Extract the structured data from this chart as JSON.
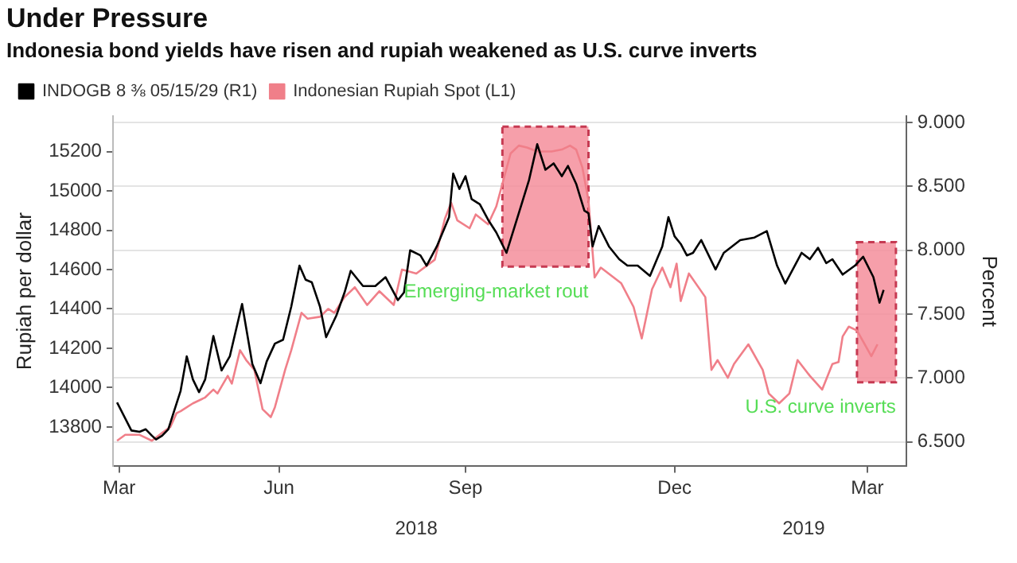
{
  "chart_data": {
    "type": "line",
    "title": "Under Pressure",
    "subtitle": "Indonesia bond yields have risen and rupiah weakened as U.S. curve inverts",
    "ylabel": "Rupiah per dollar",
    "y2label": "Percent",
    "xlim": [
      "2018-03-18",
      "2019-04-09"
    ],
    "xticks": [
      {
        "value": "2018-03-21",
        "label": "Mar"
      },
      {
        "value": "2018-06-07",
        "label": "Jun"
      },
      {
        "value": "2018-09-06",
        "label": "Sep"
      },
      {
        "value": "2018-12-17",
        "label": "Dec"
      },
      {
        "value": "2019-03-21",
        "label": "Mar"
      }
    ],
    "x2lim": [
      "2018-03-18",
      "2019-04-09"
    ],
    "x2ticks": [
      {
        "value": "2018-08-13",
        "label": "2018"
      },
      {
        "value": "2019-02-18",
        "label": "2019"
      }
    ],
    "ylim": [
      13600,
      15380
    ],
    "yticks": [
      13800,
      14000,
      14200,
      14400,
      14600,
      14800,
      15000,
      15200
    ],
    "y2lim": [
      6.31,
      9.05
    ],
    "y2ticks": [
      {
        "value": 6.5,
        "label": "6.500"
      },
      {
        "value": 7,
        "label": "7.000"
      },
      {
        "value": 7.5,
        "label": "7.500"
      },
      {
        "value": 8,
        "label": "8.000"
      },
      {
        "value": 8.5,
        "label": "8.500"
      },
      {
        "value": 9,
        "label": "9.000"
      }
    ],
    "grid": "y",
    "legend": "top left",
    "marker": "none",
    "line_style": "solid",
    "bands": [
      {
        "axis": "x",
        "from": "2018-09-24",
        "to": "2018-11-05",
        "label": "Emerging-market rout",
        "color": "#f58e9b"
      },
      {
        "axis": "x",
        "from": "2019-03-16",
        "to": "2019-04-04",
        "label": "U.S. curve inverts",
        "color": "#f58e9b"
      }
    ],
    "series": [
      {
        "name": "INDOGB 8 ⅜ 05/15/29 (R1)",
        "color": "#000000",
        "axis": "y2",
        "x": [
          "2018-03-20",
          "2018-03-27",
          "2018-03-31",
          "2018-04-03",
          "2018-04-06",
          "2018-04-08",
          "2018-04-11",
          "2018-04-14",
          "2018-04-17",
          "2018-04-20",
          "2018-04-23",
          "2018-04-26",
          "2018-04-29",
          "2018-05-02",
          "2018-05-06",
          "2018-05-10",
          "2018-05-14",
          "2018-05-20",
          "2018-05-25",
          "2018-05-29",
          "2018-06-01",
          "2018-06-05",
          "2018-06-09",
          "2018-06-13",
          "2018-06-17",
          "2018-06-20",
          "2018-06-23",
          "2018-06-27",
          "2018-06-30",
          "2018-07-05",
          "2018-07-09",
          "2018-07-12",
          "2018-07-18",
          "2018-07-24",
          "2018-07-29",
          "2018-08-04",
          "2018-08-07",
          "2018-08-10",
          "2018-08-15",
          "2018-08-18",
          "2018-08-23",
          "2018-08-29",
          "2018-08-31",
          "2018-09-03",
          "2018-09-06",
          "2018-09-09",
          "2018-09-13",
          "2018-09-17",
          "2018-09-21",
          "2018-09-26",
          "2018-10-02",
          "2018-10-07",
          "2018-10-11",
          "2018-10-15",
          "2018-10-19",
          "2018-10-23",
          "2018-10-26",
          "2018-10-30",
          "2018-11-03",
          "2018-11-05",
          "2018-11-07",
          "2018-11-10",
          "2018-11-15",
          "2018-11-20",
          "2018-11-24",
          "2018-11-29",
          "2018-12-05",
          "2018-12-11",
          "2018-12-14",
          "2018-12-17",
          "2018-12-20",
          "2018-12-23",
          "2018-12-26",
          "2018-12-30",
          "2019-01-06",
          "2019-01-10",
          "2019-01-18",
          "2019-01-25",
          "2019-01-31",
          "2019-02-05",
          "2019-02-09",
          "2019-02-17",
          "2019-02-21",
          "2019-02-25",
          "2019-03-01",
          "2019-03-04",
          "2019-03-09",
          "2019-03-15",
          "2019-03-19",
          "2019-03-24",
          "2019-03-27",
          "2019-03-29"
        ],
        "values": [
          6.81,
          6.59,
          6.58,
          6.6,
          6.55,
          6.52,
          6.55,
          6.6,
          6.75,
          6.9,
          7.17,
          6.99,
          6.89,
          6.99,
          7.33,
          7.06,
          7.17,
          7.58,
          7.11,
          6.96,
          7.13,
          7.27,
          7.3,
          7.56,
          7.88,
          7.77,
          7.75,
          7.56,
          7.32,
          7.49,
          7.67,
          7.84,
          7.72,
          7.72,
          7.79,
          7.61,
          7.67,
          8.0,
          7.96,
          7.88,
          8.03,
          8.26,
          8.6,
          8.48,
          8.58,
          8.4,
          8.36,
          8.24,
          8.14,
          7.98,
          8.29,
          8.55,
          8.83,
          8.63,
          8.68,
          8.58,
          8.66,
          8.52,
          8.31,
          8.29,
          8.03,
          8.19,
          8.03,
          7.93,
          7.88,
          7.88,
          7.8,
          8.03,
          8.26,
          8.11,
          8.05,
          7.96,
          7.98,
          8.08,
          7.85,
          7.98,
          8.08,
          8.1,
          8.15,
          7.88,
          7.74,
          7.98,
          7.93,
          8.02,
          7.9,
          7.93,
          7.81,
          7.88,
          7.95,
          7.79,
          7.59,
          7.69
        ]
      },
      {
        "name": "Indonesian Rupiah Spot (L1)",
        "color": "#f07f89",
        "x": [
          "2018-03-20",
          "2018-03-24",
          "2018-03-31",
          "2018-04-06",
          "2018-04-11",
          "2018-04-15",
          "2018-04-18",
          "2018-04-20",
          "2018-04-26",
          "2018-05-02",
          "2018-05-06",
          "2018-05-08",
          "2018-05-13",
          "2018-05-15",
          "2018-05-19",
          "2018-05-22",
          "2018-05-26",
          "2018-05-30",
          "2018-06-03",
          "2018-06-05",
          "2018-06-10",
          "2018-06-13",
          "2018-06-18",
          "2018-06-21",
          "2018-06-27",
          "2018-07-01",
          "2018-07-04",
          "2018-07-09",
          "2018-07-14",
          "2018-07-20",
          "2018-07-26",
          "2018-08-02",
          "2018-08-06",
          "2018-08-13",
          "2018-08-22",
          "2018-08-27",
          "2018-08-30",
          "2018-09-02",
          "2018-09-08",
          "2018-09-11",
          "2018-09-17",
          "2018-09-21",
          "2018-09-28",
          "2018-10-02",
          "2018-10-06",
          "2018-10-11",
          "2018-10-18",
          "2018-10-23",
          "2018-10-27",
          "2018-10-30",
          "2018-11-02",
          "2018-11-05",
          "2018-11-08",
          "2018-11-11",
          "2018-11-21",
          "2018-11-27",
          "2018-12-01",
          "2018-12-06",
          "2018-12-11",
          "2018-12-15",
          "2018-12-18",
          "2018-12-20",
          "2018-12-24",
          "2019-01-01",
          "2019-01-04",
          "2019-01-07",
          "2019-01-12",
          "2019-01-15",
          "2019-01-22",
          "2019-01-29",
          "2019-02-01",
          "2019-02-06",
          "2019-02-11",
          "2019-02-15",
          "2019-02-21",
          "2019-02-27",
          "2019-03-04",
          "2019-03-07",
          "2019-03-09",
          "2019-03-12",
          "2019-03-16",
          "2019-03-23",
          "2019-03-26"
        ],
        "values": [
          13730,
          13760,
          13760,
          13730,
          13770,
          13800,
          13870,
          13880,
          13920,
          13950,
          13990,
          13970,
          14060,
          14020,
          14190,
          14140,
          14090,
          13890,
          13850,
          13900,
          14090,
          14190,
          14380,
          14350,
          14360,
          14400,
          14380,
          14460,
          14510,
          14420,
          14490,
          14420,
          14600,
          14580,
          14650,
          14860,
          14940,
          14850,
          14810,
          14880,
          14830,
          14920,
          15190,
          15230,
          15220,
          15200,
          15200,
          15210,
          15230,
          15210,
          15120,
          14950,
          14560,
          14610,
          14530,
          14410,
          14250,
          14500,
          14610,
          14510,
          14630,
          14440,
          14580,
          14460,
          14090,
          14140,
          14050,
          14120,
          14220,
          14090,
          13970,
          13920,
          13970,
          14140,
          14060,
          13990,
          14120,
          14130,
          14260,
          14310,
          14290,
          14160,
          14220
        ]
      }
    ]
  }
}
